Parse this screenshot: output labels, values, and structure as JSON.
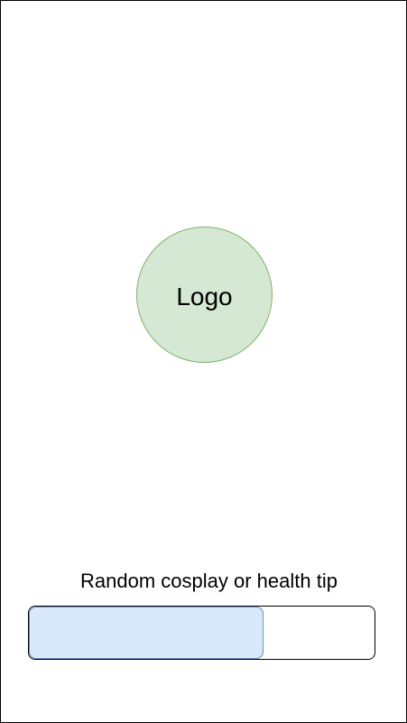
{
  "splash": {
    "logo_label": "Logo",
    "tip_text": "Random cosplay or health tip",
    "progress": {
      "fraction": 0.68
    }
  },
  "colors": {
    "logo_fill": "#d5e8d4",
    "logo_stroke": "#82b366",
    "progress_fill": "#dae8fc",
    "progress_stroke": "#6c8ebf"
  }
}
